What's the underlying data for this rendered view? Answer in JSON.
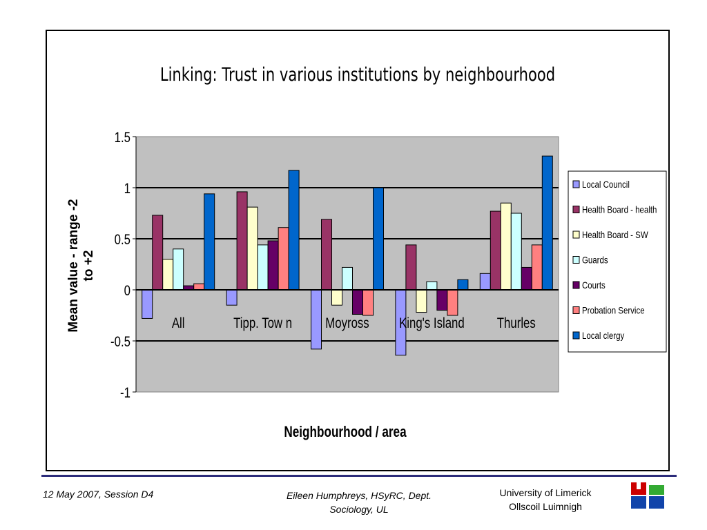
{
  "chart_data": {
    "type": "bar",
    "title": "Linking: Trust in various institutions by neighbourhood",
    "xlabel": "Neighbourhood / area",
    "ylabel": "Mean value - range -2 to +2",
    "ylim": [
      -1,
      1.5
    ],
    "yticks": [
      "-1",
      "-0.5",
      "0",
      "0.5",
      "1",
      "1.5"
    ],
    "grid": true,
    "legend_position": "right",
    "categories": [
      "All",
      "Tipp. Tow n",
      "Moyross",
      "King's Island",
      "Thurles"
    ],
    "series": [
      {
        "name": "Local Council",
        "color": "#9999ff",
        "values": [
          -0.28,
          -0.15,
          -0.58,
          -0.64,
          0.16
        ]
      },
      {
        "name": "Health Board - health",
        "color": "#993366",
        "values": [
          0.73,
          0.96,
          0.69,
          0.44,
          0.77
        ]
      },
      {
        "name": "Health Board - SW",
        "color": "#ffffcc",
        "values": [
          0.3,
          0.81,
          -0.15,
          -0.22,
          0.85
        ]
      },
      {
        "name": "Guards",
        "color": "#ccffff",
        "values": [
          0.4,
          0.44,
          0.22,
          0.08,
          0.75
        ]
      },
      {
        "name": "Courts",
        "color": "#660066",
        "values": [
          0.04,
          0.48,
          -0.24,
          -0.2,
          0.22
        ]
      },
      {
        "name": "Probation Service",
        "color": "#ff8080",
        "values": [
          0.06,
          0.61,
          -0.25,
          -0.25,
          0.44
        ]
      },
      {
        "name": "Local clergy",
        "color": "#0066cc",
        "values": [
          0.94,
          1.17,
          1.0,
          0.1,
          1.31
        ]
      }
    ]
  },
  "footer": {
    "date_session": "12 May 2007, Session D4",
    "author_line1": "Eileen Humphreys, HSyRC, Dept.",
    "author_line2": "Sociology, UL",
    "university_en": "University of Limerick",
    "university_ga": "Ollscoil Luimnigh"
  },
  "logo": {
    "icon": "university-of-limerick-logo-icon",
    "colors": [
      "#cc0000",
      "#33aa33",
      "#1144aa"
    ]
  }
}
